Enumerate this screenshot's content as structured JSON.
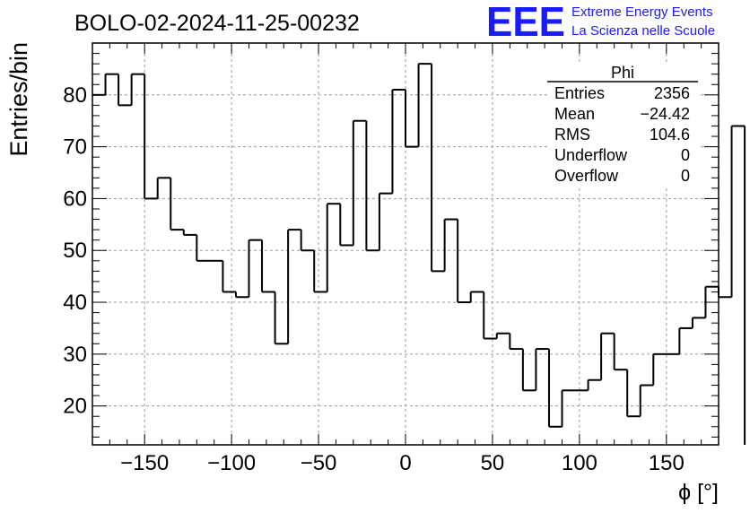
{
  "chart_data": {
    "type": "histogram",
    "title": "BOLO-02-2024-11-25-00232",
    "xlabel": "ϕ [°]",
    "ylabel": "Entries/bin",
    "xlim": [
      -180,
      180
    ],
    "ylim": [
      12.5,
      90
    ],
    "x_ticks": [
      -150,
      -100,
      -50,
      0,
      50,
      100,
      150
    ],
    "x_tick_labels": [
      "−150",
      "−100",
      "−50",
      "0",
      "50",
      "100",
      "150"
    ],
    "y_ticks": [
      20,
      30,
      40,
      50,
      60,
      70,
      80
    ],
    "y_tick_labels": [
      "20",
      "30",
      "40",
      "50",
      "60",
      "70",
      "80"
    ],
    "grid": true,
    "bin_width": 7.5,
    "bin_start": -180,
    "values": [
      80,
      84,
      78,
      84,
      60,
      64,
      54,
      53,
      48,
      48,
      42,
      41,
      52,
      42,
      32,
      54,
      50,
      42,
      59,
      51,
      75,
      50,
      61,
      81,
      70,
      86,
      46,
      56,
      40,
      42,
      33,
      34,
      31,
      23,
      31,
      16,
      23,
      23,
      25,
      34,
      27,
      18,
      24,
      30,
      30,
      35,
      37,
      43,
      41,
      74
    ],
    "stats": {
      "title": "Phi",
      "rows": [
        {
          "label": "Entries",
          "value": "2356"
        },
        {
          "label": "Mean",
          "value": "−24.42"
        },
        {
          "label": "RMS",
          "value": "104.6"
        },
        {
          "label": "Underflow",
          "value": "0"
        },
        {
          "label": "Overflow",
          "value": "0"
        }
      ]
    },
    "logo": {
      "mark": "EEE",
      "line1": "Extreme Energy Events",
      "line2": "La Scienza nelle Scuole",
      "color": "#1a1aff"
    },
    "line_color": "#000000",
    "grid_color": "#9a9a9a"
  }
}
